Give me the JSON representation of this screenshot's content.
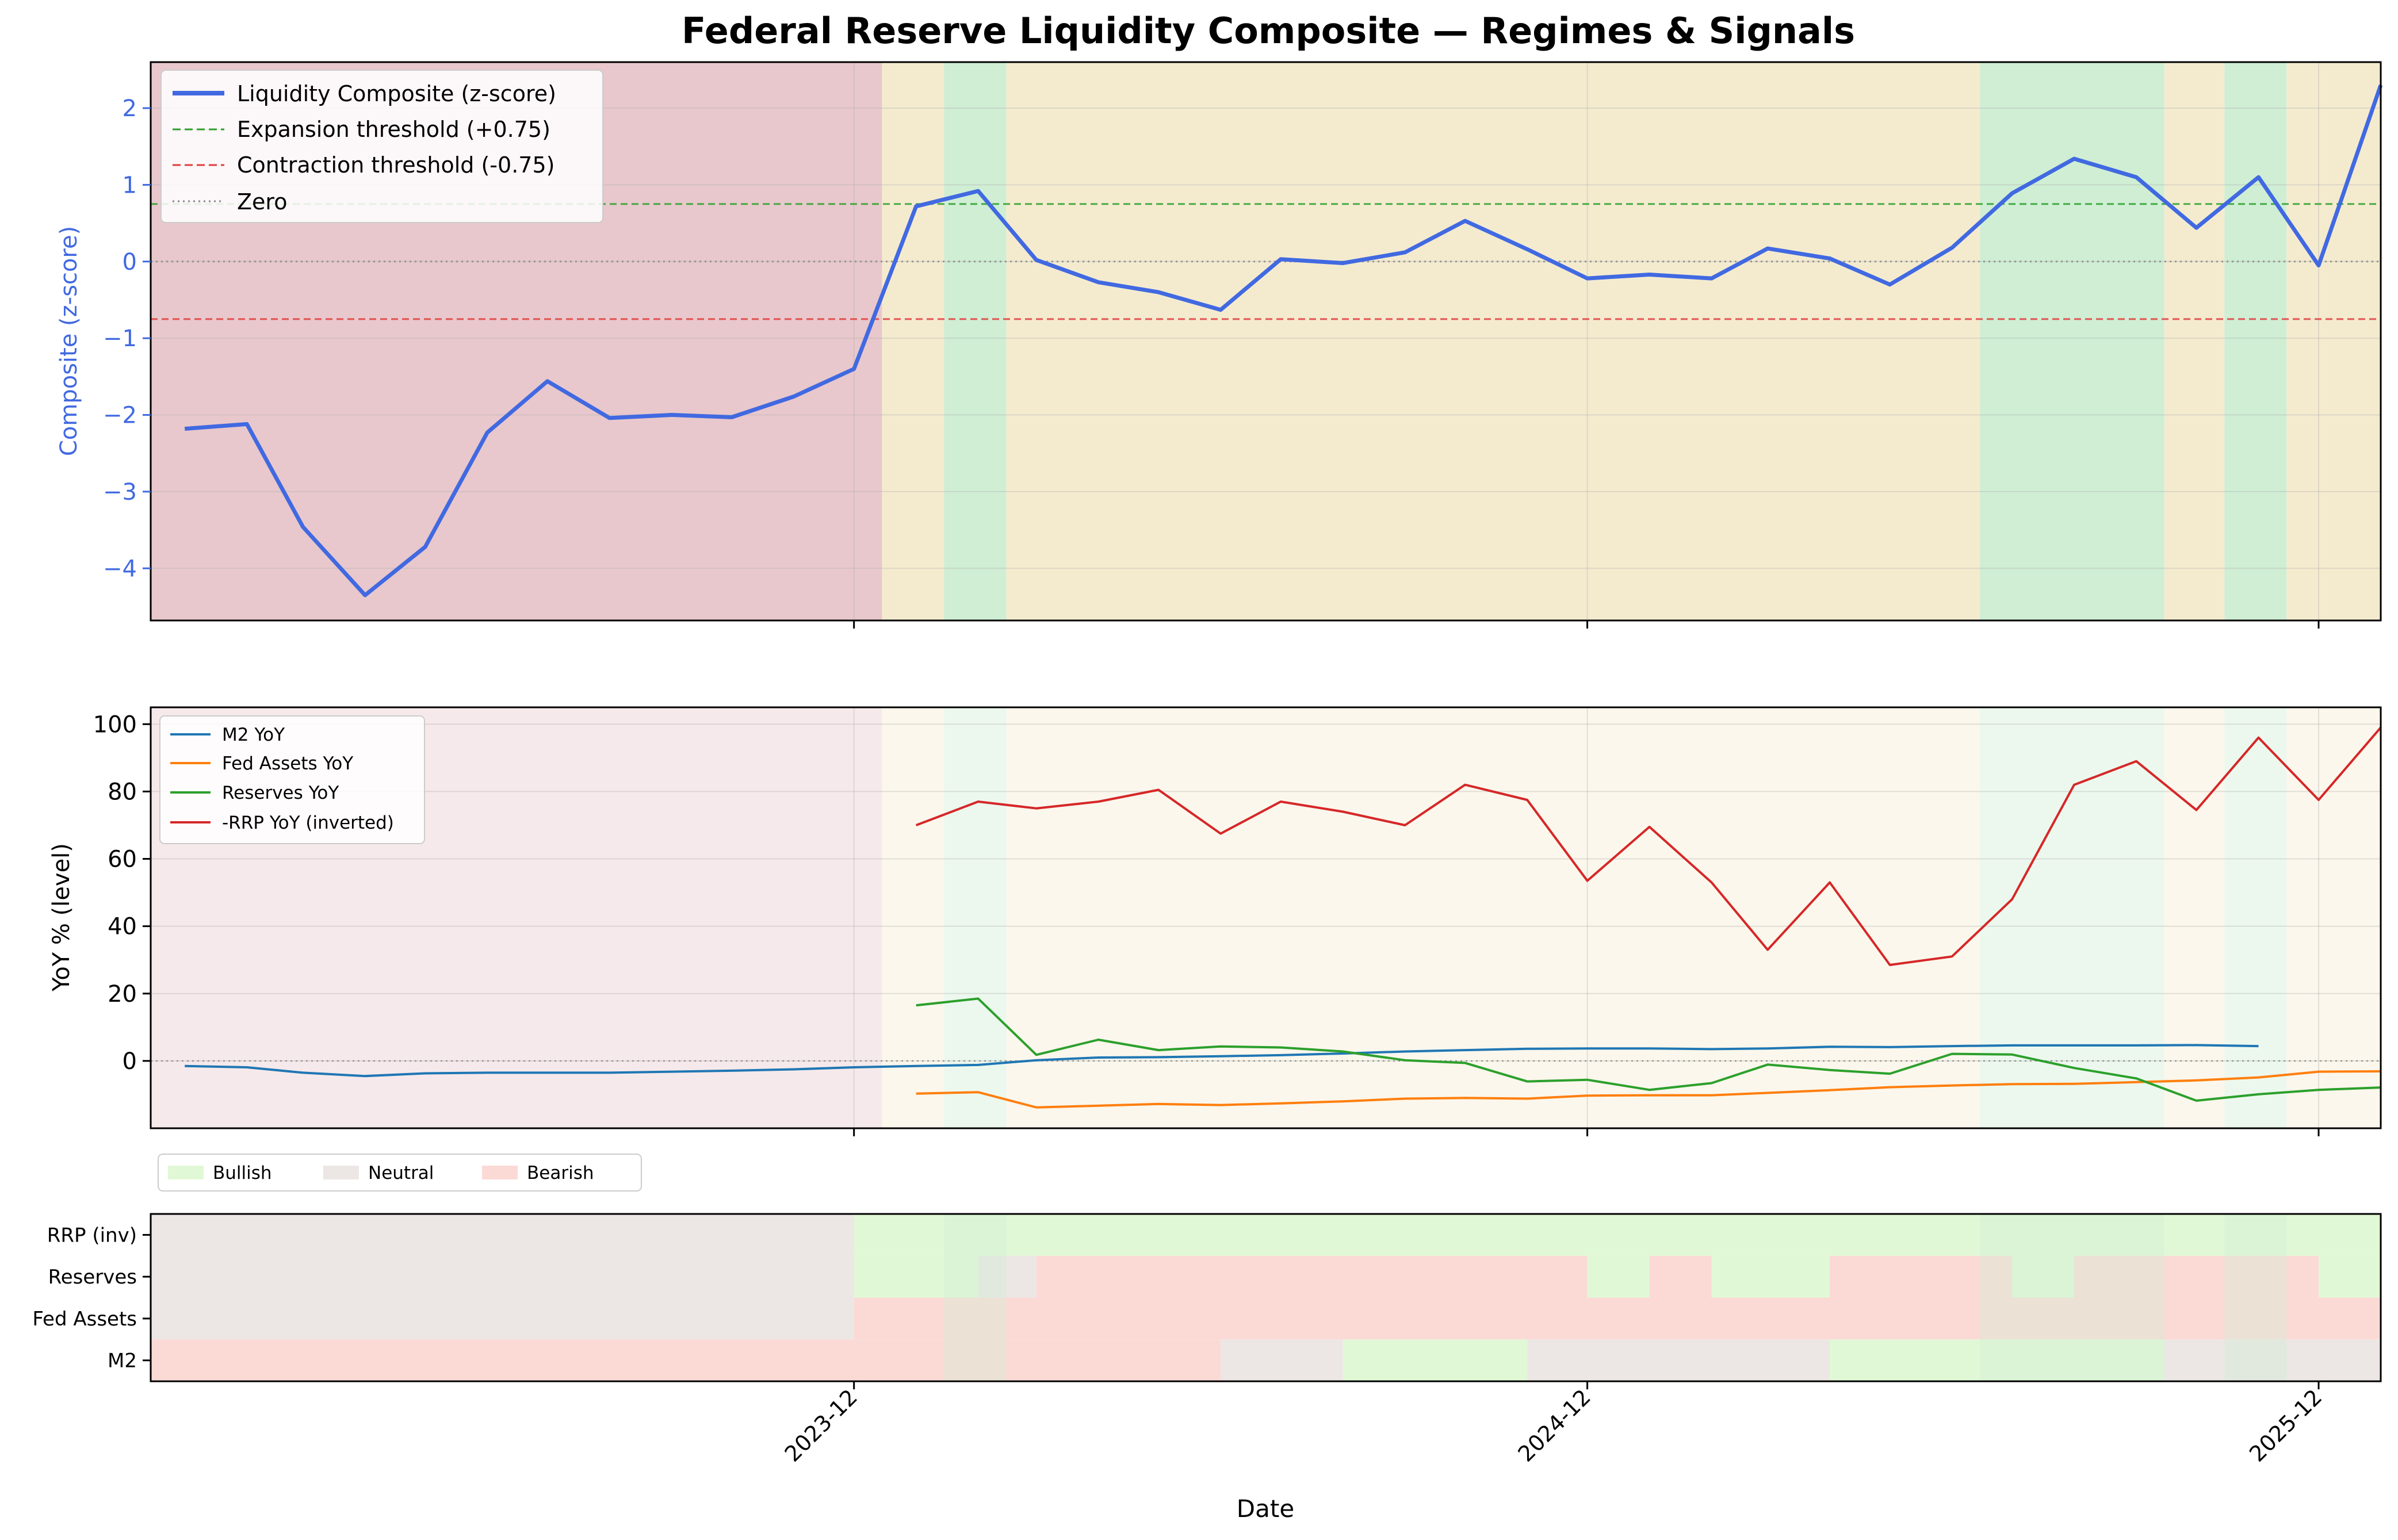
{
  "figure_title": "Federal Reserve Liquidity Composite — Regimes & Signals",
  "colors": {
    "composite": "#4169e1",
    "m2": "#1f77b4",
    "fed_assets": "#ff7f0e",
    "reserves": "#2ca02c",
    "rrp": "#d62728",
    "expansion": "#2ca02c",
    "contraction": "#e03c3c",
    "zero": "#888888",
    "regime_bearish": "#e8c8cc",
    "regime_neutral": "#f4ebcf",
    "regime_bullish": "#cfeed4",
    "signal_bullish": "#e1f8d6",
    "signal_neutral": "#ece6e4",
    "signal_bearish": "#fbdad6"
  },
  "chart_data": [
    {
      "type": "line",
      "panel": "composite",
      "ylabel": "Composite (z-score)",
      "ylim": [
        -4.68,
        2.6
      ],
      "yticks": [
        2,
        1,
        0,
        -1,
        -2,
        -3,
        -4
      ],
      "ytick_labels": [
        "2",
        "1",
        "0",
        "−1",
        "−2",
        "−3",
        "−4"
      ],
      "x": [
        "2023-01",
        "2023-02",
        "2023-03",
        "2023-04",
        "2023-05",
        "2023-06",
        "2023-07",
        "2023-08",
        "2023-09",
        "2023-10",
        "2023-11",
        "2023-12",
        "2024-01",
        "2024-02",
        "2024-03",
        "2024-04",
        "2024-05",
        "2024-06",
        "2024-07",
        "2024-08",
        "2024-09",
        "2024-10",
        "2024-11",
        "2024-12",
        "2025-01",
        "2025-02",
        "2025-03",
        "2025-04",
        "2025-05",
        "2025-06",
        "2025-07",
        "2025-08",
        "2025-09",
        "2025-10",
        "2025-11",
        "2025-12",
        "2026-01"
      ],
      "series": [
        {
          "name": "Liquidity Composite (z-score)",
          "values": [
            -2.18,
            -2.12,
            -3.46,
            -4.35,
            -3.72,
            -2.23,
            -1.56,
            -2.04,
            -2.0,
            -2.03,
            -1.76,
            -1.4,
            0.72,
            0.92,
            0.02,
            -0.27,
            -0.4,
            -0.63,
            0.03,
            -0.02,
            0.12,
            0.53,
            0.16,
            -0.22,
            -0.17,
            -0.22,
            0.17,
            0.04,
            -0.3,
            0.18,
            0.89,
            1.34,
            1.1,
            0.44,
            1.1,
            -0.05,
            2.3
          ]
        }
      ],
      "reference_lines": [
        {
          "name": "Expansion threshold (+0.75)",
          "y": 0.75
        },
        {
          "name": "Contraction threshold (-0.75)",
          "y": -0.75
        },
        {
          "name": "Zero",
          "y": 0
        }
      ],
      "regimes": [
        {
          "from": "2022-12-15",
          "to": "2023-12-15",
          "regime": "bearish"
        },
        {
          "from": "2023-12-15",
          "to": "2024-01-15",
          "regime": "neutral"
        },
        {
          "from": "2024-01-15",
          "to": "2024-02-15",
          "regime": "bullish"
        },
        {
          "from": "2024-02-15",
          "to": "2025-06-15",
          "regime": "neutral"
        },
        {
          "from": "2025-06-15",
          "to": "2025-09-15",
          "regime": "bullish"
        },
        {
          "from": "2025-09-15",
          "to": "2025-10-15",
          "regime": "neutral"
        },
        {
          "from": "2025-10-15",
          "to": "2025-11-15",
          "regime": "bullish"
        },
        {
          "from": "2025-11-15",
          "to": "2026-01-01",
          "regime": "neutral"
        }
      ],
      "grid": true,
      "legend": "upper-left"
    },
    {
      "type": "line",
      "panel": "components",
      "ylabel": "YoY % (level)",
      "ylim": [
        -20,
        105
      ],
      "yticks": [
        100,
        80,
        60,
        40,
        20,
        0
      ],
      "ytick_labels": [
        "100",
        "80",
        "60",
        "40",
        "20",
        "0"
      ],
      "x": [
        "2023-01",
        "2023-02",
        "2023-03",
        "2023-04",
        "2023-05",
        "2023-06",
        "2023-07",
        "2023-08",
        "2023-09",
        "2023-10",
        "2023-11",
        "2023-12",
        "2024-01",
        "2024-02",
        "2024-03",
        "2024-04",
        "2024-05",
        "2024-06",
        "2024-07",
        "2024-08",
        "2024-09",
        "2024-10",
        "2024-11",
        "2024-12",
        "2025-01",
        "2025-02",
        "2025-03",
        "2025-04",
        "2025-05",
        "2025-06",
        "2025-07",
        "2025-08",
        "2025-09",
        "2025-10",
        "2025-11",
        "2025-12",
        "2026-01"
      ],
      "series": [
        {
          "name": "M2 YoY",
          "values": [
            -1.5,
            -1.9,
            -3.5,
            -4.5,
            -3.7,
            -3.5,
            -3.5,
            -3.5,
            -3.2,
            -2.9,
            -2.5,
            -1.9,
            -1.5,
            -1.2,
            0.2,
            1.0,
            1.1,
            1.4,
            1.7,
            2.2,
            2.8,
            3.2,
            3.6,
            3.7,
            3.7,
            3.5,
            3.7,
            4.2,
            4.1,
            4.4,
            4.6,
            4.6,
            4.6,
            4.7,
            4.4,
            null,
            null
          ]
        },
        {
          "name": "Fed Assets YoY",
          "values": [
            null,
            null,
            null,
            null,
            null,
            null,
            null,
            null,
            null,
            null,
            null,
            null,
            -9.7,
            -9.3,
            -13.8,
            -13.3,
            -12.8,
            -13.1,
            -12.6,
            -12.0,
            -11.2,
            -11.0,
            -11.2,
            -10.3,
            -10.2,
            -10.2,
            -9.5,
            -8.7,
            -7.8,
            -7.3,
            -6.9,
            -6.8,
            -6.3,
            -5.8,
            -4.9,
            -3.2,
            -3.1
          ]
        },
        {
          "name": "Reserves YoY",
          "values": [
            null,
            null,
            null,
            null,
            null,
            null,
            null,
            null,
            null,
            null,
            null,
            null,
            16.5,
            18.5,
            1.8,
            6.3,
            3.2,
            4.3,
            4.0,
            2.8,
            0.2,
            -0.6,
            -6.1,
            -5.6,
            -8.6,
            -6.6,
            -1.1,
            -2.7,
            -3.8,
            2.1,
            1.9,
            -2.1,
            -5.2,
            -11.8,
            -9.9,
            -8.6,
            -7.9
          ]
        },
        {
          "name": "-RRP YoY (inverted)",
          "values": [
            null,
            null,
            null,
            null,
            null,
            null,
            null,
            null,
            null,
            null,
            null,
            null,
            70.0,
            77.0,
            75.0,
            77.0,
            80.5,
            67.5,
            77.0,
            74.0,
            70.0,
            82.0,
            77.5,
            53.5,
            69.5,
            53.0,
            33.0,
            53.0,
            28.5,
            31.0,
            48.0,
            82.0,
            89.0,
            74.5,
            96.0,
            77.5,
            99.0
          ]
        }
      ],
      "reference_lines": [
        {
          "name": "zero",
          "y": 0
        }
      ],
      "grid": true,
      "legend": "upper-left"
    },
    {
      "type": "heatmap",
      "panel": "signals",
      "xlabel": "Date",
      "legend_entries": [
        "Bullish",
        "Neutral",
        "Bearish"
      ],
      "rows": [
        "RRP (inv)",
        "Reserves",
        "Fed Assets",
        "M2"
      ],
      "x_ticks": [
        {
          "date": "2023-12-01",
          "label": "2023-12"
        },
        {
          "date": "2024-12-01",
          "label": "2024-12"
        },
        {
          "date": "2025-12-01",
          "label": "2025-12"
        }
      ],
      "segments": {
        "RRP (inv)": [
          {
            "from": "2022-12-15",
            "to": "2023-12-01",
            "state": "Neutral"
          },
          {
            "from": "2023-12-01",
            "to": "2026-01-01",
            "state": "Bullish"
          }
        ],
        "Reserves": [
          {
            "from": "2022-12-15",
            "to": "2023-12-01",
            "state": "Neutral"
          },
          {
            "from": "2023-12-01",
            "to": "2024-02-01",
            "state": "Bullish"
          },
          {
            "from": "2024-02-01",
            "to": "2024-03-01",
            "state": "Neutral"
          },
          {
            "from": "2024-03-01",
            "to": "2024-12-01",
            "state": "Bearish"
          },
          {
            "from": "2024-12-01",
            "to": "2025-01-01",
            "state": "Bullish"
          },
          {
            "from": "2025-01-01",
            "to": "2025-02-01",
            "state": "Bearish"
          },
          {
            "from": "2025-02-01",
            "to": "2025-04-01",
            "state": "Bullish"
          },
          {
            "from": "2025-04-01",
            "to": "2025-07-01",
            "state": "Bearish"
          },
          {
            "from": "2025-07-01",
            "to": "2025-08-01",
            "state": "Bullish"
          },
          {
            "from": "2025-08-01",
            "to": "2025-12-01",
            "state": "Bearish"
          },
          {
            "from": "2025-12-01",
            "to": "2026-01-01",
            "state": "Bullish"
          }
        ],
        "Fed Assets": [
          {
            "from": "2022-12-15",
            "to": "2023-12-01",
            "state": "Neutral"
          },
          {
            "from": "2023-12-01",
            "to": "2026-01-01",
            "state": "Bearish"
          }
        ],
        "M2": [
          {
            "from": "2022-12-15",
            "to": "2024-06-01",
            "state": "Bearish"
          },
          {
            "from": "2024-06-01",
            "to": "2024-08-01",
            "state": "Neutral"
          },
          {
            "from": "2024-08-01",
            "to": "2024-11-01",
            "state": "Bullish"
          },
          {
            "from": "2024-11-01",
            "to": "2025-04-01",
            "state": "Neutral"
          },
          {
            "from": "2025-04-01",
            "to": "2025-09-15",
            "state": "Bullish"
          },
          {
            "from": "2025-09-15",
            "to": "2026-01-01",
            "state": "Neutral"
          }
        ]
      }
    }
  ]
}
